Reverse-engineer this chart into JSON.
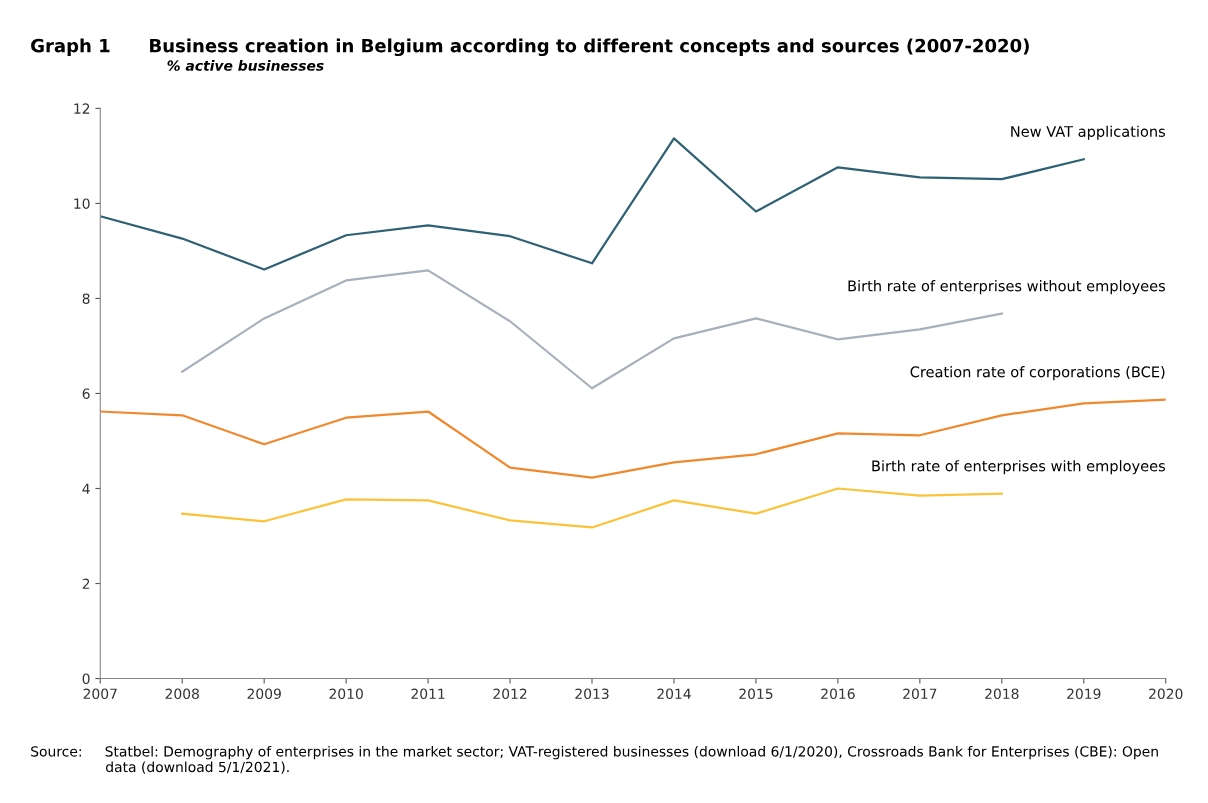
{
  "chart_data": {
    "type": "line",
    "title": "Graph 1      Business creation in Belgium according to different concepts and sources (2007-2020)",
    "subtitle": "% active businesses",
    "x": [
      2007,
      2008,
      2009,
      2010,
      2011,
      2012,
      2013,
      2014,
      2015,
      2016,
      2017,
      2018,
      2019,
      2020
    ],
    "series": [
      {
        "name": "New VAT applications",
        "color": "#2e6174",
        "values": [
          9.73,
          9.26,
          8.61,
          9.33,
          9.54,
          9.31,
          8.74,
          11.37,
          9.83,
          10.76,
          10.55,
          10.51,
          10.93,
          null
        ]
      },
      {
        "name": "Birth rate of enterprises without employees",
        "color": "#a7b0bc",
        "values": [
          null,
          6.46,
          7.58,
          8.38,
          8.59,
          7.52,
          6.11,
          7.16,
          7.58,
          7.14,
          7.35,
          7.68,
          null,
          null
        ]
      },
      {
        "name": "Creation rate of corporations (BCE)",
        "color": "#f0892e",
        "values": [
          5.62,
          5.54,
          4.93,
          5.49,
          5.62,
          4.44,
          4.23,
          4.55,
          4.72,
          5.16,
          5.12,
          5.54,
          5.79,
          5.87
        ]
      },
      {
        "name": "Birth rate of enterprises with employees",
        "color": "#fbc33a",
        "values": [
          null,
          3.47,
          3.31,
          3.77,
          3.75,
          3.33,
          3.18,
          3.75,
          3.47,
          4.0,
          3.85,
          3.89,
          null,
          null
        ]
      }
    ],
    "xlim": [
      2007,
      2020
    ],
    "xticks": [
      2007,
      2008,
      2009,
      2010,
      2011,
      2012,
      2013,
      2014,
      2015,
      2016,
      2017,
      2018,
      2019,
      2020
    ],
    "ylim": [
      0,
      12
    ],
    "yticks": [
      0,
      2,
      4,
      6,
      8,
      10,
      12
    ],
    "grid": false,
    "legend": false,
    "marker": "none",
    "line_style": "solid",
    "annotations": [
      "Source:     Statbel: Demography of enterprises in the market sector; VAT-registered businesses (download 6/1/2020), Crossroads Bank for Enterprises (CBE): Open\n                 data (download 5/1/2021)."
    ]
  }
}
